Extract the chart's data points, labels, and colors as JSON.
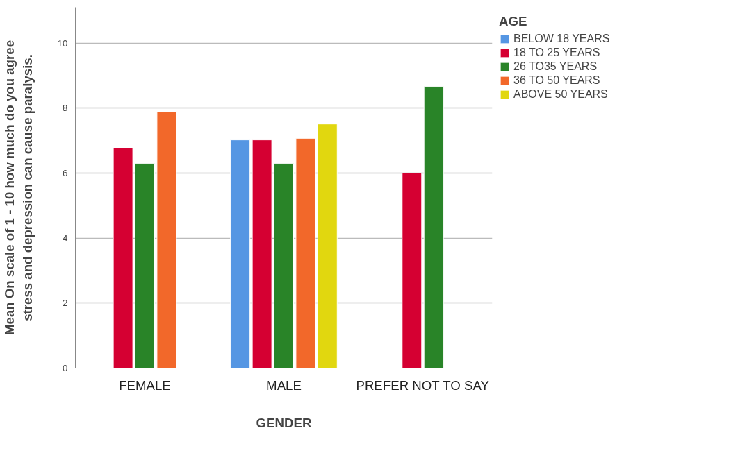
{
  "chart_data": {
    "type": "bar",
    "xlabel": "GENDER",
    "ylabel": "Mean On scale of 1 - 10 how much do you agree\nstress and depression can cause paralysis.",
    "legend_title": "AGE",
    "legend": "top right",
    "grid": "y",
    "categories": [
      "FEMALE",
      "MALE",
      "PREFER NOT TO SAY"
    ],
    "ylim": [
      0,
      11.1
    ],
    "yticks": [
      0,
      2,
      4,
      6,
      8,
      10
    ],
    "series": [
      {
        "name": "BELOW 18 YEARS",
        "color": "#5596e3",
        "values": [
          null,
          7.02,
          null
        ]
      },
      {
        "name": "18 TO 25 YEARS",
        "color": "#d50032",
        "values": [
          6.78,
          7.02,
          6.0
        ]
      },
      {
        "name": "26 TO35 YEARS",
        "color": "#298428",
        "values": [
          6.3,
          6.3,
          8.66
        ]
      },
      {
        "name": "36 TO 50 YEARS",
        "color": "#f2682a",
        "values": [
          7.89,
          7.07,
          null
        ]
      },
      {
        "name": "ABOVE 50 YEARS",
        "color": "#e1d70f",
        "values": [
          null,
          7.51,
          null
        ]
      }
    ]
  }
}
